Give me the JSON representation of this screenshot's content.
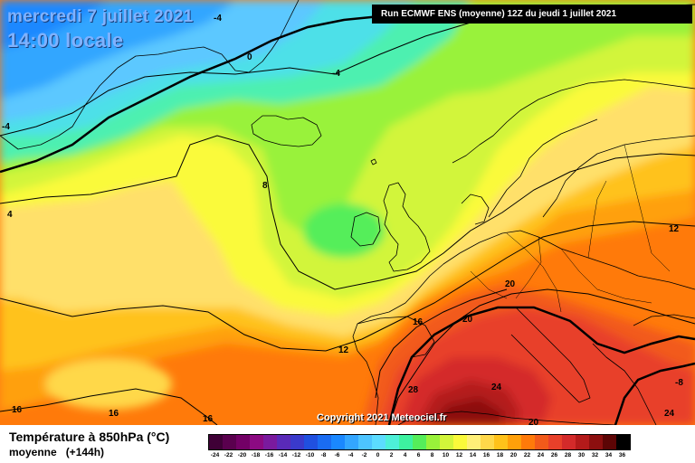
{
  "header": {
    "date": "mercredi 7 juillet 2021",
    "time": "14:00 locale",
    "run": "Run ECMWF ENS (moyenne) 12Z du jeudi 1 juillet 2021"
  },
  "copyright": "Copyright 2021 Meteociel.fr",
  "legend": {
    "title": "Température à 850hPa (°C)",
    "subtitle": "moyenne",
    "lead": "(+144h)",
    "scale": [
      {
        "value": "-24",
        "color": "#3f0036"
      },
      {
        "value": "-22",
        "color": "#5a004e"
      },
      {
        "value": "-20",
        "color": "#730066"
      },
      {
        "value": "-18",
        "color": "#8c0a82"
      },
      {
        "value": "-16",
        "color": "#7a1a9e"
      },
      {
        "value": "-14",
        "color": "#5a2ab8"
      },
      {
        "value": "-12",
        "color": "#3a3acc"
      },
      {
        "value": "-10",
        "color": "#2050e0"
      },
      {
        "value": "-8",
        "color": "#1a6cf2"
      },
      {
        "value": "-6",
        "color": "#1a88ff"
      },
      {
        "value": "-4",
        "color": "#33a6ff"
      },
      {
        "value": "-2",
        "color": "#4dc4ff"
      },
      {
        "value": "0",
        "color": "#5cdcff"
      },
      {
        "value": "2",
        "color": "#4df0d8"
      },
      {
        "value": "4",
        "color": "#3df2a0"
      },
      {
        "value": "6",
        "color": "#55ee5a"
      },
      {
        "value": "8",
        "color": "#99f23a"
      },
      {
        "value": "10",
        "color": "#d2f53a"
      },
      {
        "value": "12",
        "color": "#fafa3a"
      },
      {
        "value": "14",
        "color": "#fff078"
      },
      {
        "value": "16",
        "color": "#ffd84a"
      },
      {
        "value": "18",
        "color": "#ffc21a"
      },
      {
        "value": "20",
        "color": "#ffa00a"
      },
      {
        "value": "22",
        "color": "#ff7a0a"
      },
      {
        "value": "24",
        "color": "#f25a1a"
      },
      {
        "value": "26",
        "color": "#e8402a"
      },
      {
        "value": "28",
        "color": "#d42a2a"
      },
      {
        "value": "30",
        "color": "#b41a1a"
      },
      {
        "value": "32",
        "color": "#8c0f0f"
      },
      {
        "value": "34",
        "color": "#5c0505"
      },
      {
        "value": "36",
        "color": "#000000"
      }
    ]
  },
  "isotherm_labels": [
    "-4",
    "-4",
    "-4",
    "0",
    "4",
    "8",
    "12",
    "12",
    "16",
    "16",
    "16",
    "16",
    "20",
    "20",
    "20",
    "24",
    "24",
    "28",
    "-8"
  ]
}
